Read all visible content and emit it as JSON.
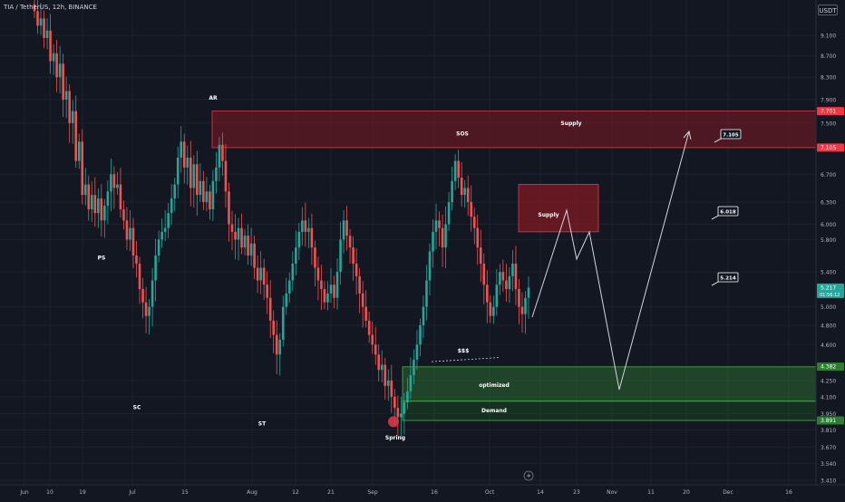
{
  "header": {
    "symbol": "TIA / TetherUS",
    "interval": "12h",
    "exchange": "BINANCE",
    "currency": "USDT"
  },
  "colors": {
    "background": "#131722",
    "up": "#26a69a",
    "down": "#ef5350",
    "supply_zone": "#801922",
    "demand_zone": "#1b5e20",
    "path": "#d1d4dc"
  },
  "icons": {
    "replay": "lightning-icon"
  },
  "chart_data": {
    "type": "candlestick",
    "y_axis": {
      "scale": "log",
      "ticks": [
        9.1,
        8.7,
        8.3,
        7.9,
        7.5,
        6.7,
        6.3,
        6.0,
        5.8,
        5.4,
        5.0,
        4.8,
        4.6,
        4.25,
        4.1,
        3.95,
        3.81,
        3.67,
        3.54,
        3.41
      ]
    },
    "x_axis": {
      "tick_labels": [
        "Jun",
        "10",
        "19",
        "Jul",
        "15",
        "Aug",
        "12",
        "21",
        "Sep",
        "16",
        "Oct",
        "14",
        "23",
        "Nov",
        "11",
        "20",
        "Dec",
        "16"
      ]
    },
    "price_tags": [
      {
        "label": "7.701",
        "value": 7.701,
        "color": "#f23645"
      },
      {
        "label": "7.105",
        "value": 7.105,
        "color": "#f23645"
      },
      {
        "label": "5.217",
        "sublabel": "01:56:12",
        "value": 5.217,
        "color": "#26a69a"
      },
      {
        "label": "4.382",
        "value": 4.382,
        "color": "#2e7d32"
      },
      {
        "label": "3.891",
        "value": 3.891,
        "color": "#2e7d32"
      }
    ],
    "zones": [
      {
        "name": "Supply",
        "label2": "SOS",
        "type": "supply",
        "low": 7.105,
        "high": 7.701
      },
      {
        "name": "Supply",
        "type": "supply",
        "low": 5.9,
        "high": 6.55
      },
      {
        "name": "optimized",
        "type": "demand",
        "low": 4.06,
        "high": 4.38
      },
      {
        "name": "Demand",
        "type": "demand",
        "low": 3.891,
        "high": 4.06
      }
    ],
    "wyckoff_labels": [
      {
        "text": "AR",
        "price": 7.9
      },
      {
        "text": "PS",
        "price": 5.55
      },
      {
        "text": "SC",
        "price": 3.99
      },
      {
        "text": "ST",
        "price": 3.85
      },
      {
        "text": "Spring",
        "price": 3.73
      },
      {
        "text": "$$$",
        "price": 4.52
      }
    ],
    "target_labels": [
      "7.105",
      "6.018",
      "5.214"
    ],
    "candles": {
      "closes": [
        9.6,
        9.3,
        9.45,
        9.05,
        9.2,
        8.6,
        8.75,
        8.3,
        8.55,
        7.9,
        8.05,
        7.5,
        7.7,
        6.9,
        7.2,
        6.4,
        6.55,
        6.2,
        6.4,
        6.15,
        6.35,
        6.05,
        6.25,
        6.45,
        6.7,
        6.5,
        6.55,
        6.2,
        6.05,
        5.8,
        5.95,
        5.6,
        5.5,
        5.2,
        5.05,
        4.9,
        5.0,
        5.3,
        5.6,
        5.8,
        5.9,
        5.95,
        6.15,
        6.35,
        6.55,
        6.95,
        7.2,
        6.8,
        6.95,
        6.5,
        6.85,
        6.4,
        6.6,
        6.3,
        6.45,
        6.2,
        6.6,
        6.8,
        7.15,
        6.9,
        6.45,
        6.0,
        5.9,
        5.8,
        5.95,
        5.7,
        5.85,
        5.6,
        5.75,
        5.45,
        5.3,
        5.45,
        5.25,
        5.1,
        4.85,
        4.7,
        4.5,
        4.65,
        5.0,
        5.15,
        5.3,
        5.5,
        5.7,
        5.9,
        6.05,
        5.9,
        5.95,
        5.7,
        5.45,
        5.3,
        5.2,
        5.05,
        5.15,
        5.25,
        5.1,
        5.4,
        5.8,
        6.05,
        5.85,
        5.7,
        5.5,
        5.35,
        5.15,
        5.0,
        4.85,
        4.7,
        4.6,
        4.5,
        4.35,
        4.4,
        4.2,
        4.25,
        4.1,
        4.0,
        3.92,
        3.95,
        4.05,
        4.15,
        4.3,
        4.45,
        4.6,
        4.8,
        5.0,
        5.3,
        5.65,
        5.9,
        6.05,
        5.95,
        5.7,
        6.0,
        6.3,
        6.6,
        6.9,
        6.65,
        6.4,
        6.5,
        6.3,
        6.1,
        5.95,
        5.7,
        5.5,
        5.25,
        5.05,
        4.9,
        5.0,
        5.25,
        5.4,
        5.3,
        5.2,
        5.35,
        5.5,
        5.2,
        5.0,
        4.92,
        5.1,
        5.217
      ],
      "x_start_index": 0
    },
    "projection_path_label": "projected path"
  }
}
